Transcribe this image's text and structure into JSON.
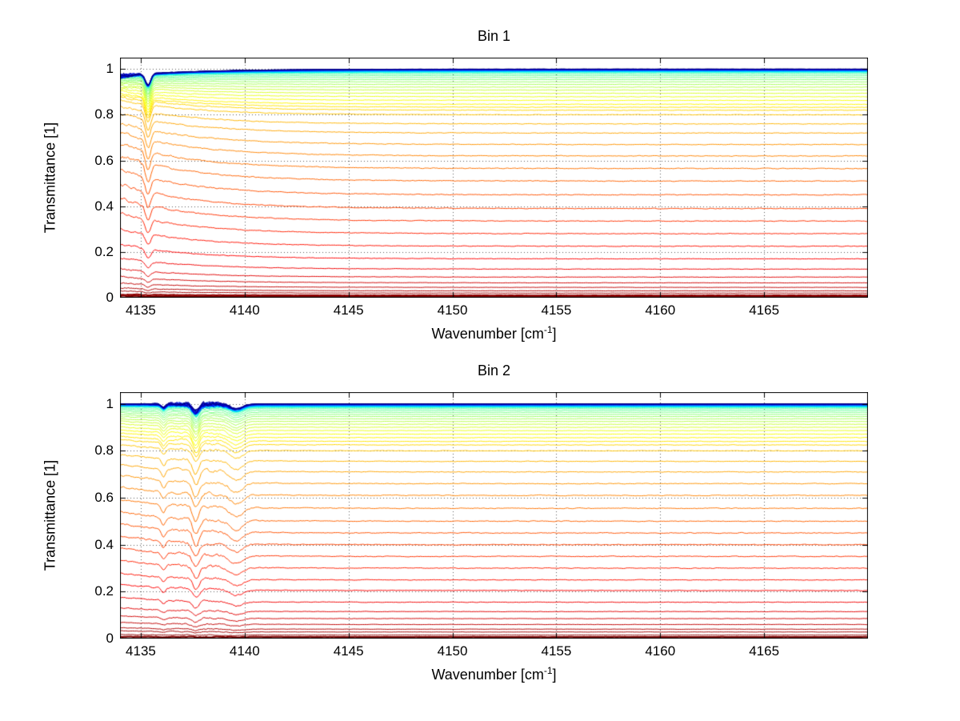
{
  "figure": {
    "background": "#ffffff",
    "text_color": "#000000",
    "grid_style": "dotted"
  },
  "chart_data": [
    {
      "type": "line",
      "title": "Bin 1",
      "xlabel": "Wavenumber [cm⁻¹]",
      "xlabel_base": "Wavenumber [cm",
      "xlabel_sup": "-1",
      "xlabel_close": "]",
      "ylabel": "Transmittance [1]",
      "xlim": [
        4134,
        4170
      ],
      "ylim": [
        0,
        1.05
      ],
      "xticks": [
        4135,
        4140,
        4145,
        4150,
        4155,
        4160,
        4165
      ],
      "xtick_labels": [
        "4135",
        "4140",
        "4145",
        "4150",
        "4155",
        "4160",
        "4165"
      ],
      "yticks": [
        0,
        0.2,
        0.4,
        0.6,
        0.8,
        1
      ],
      "ytick_labels": [
        "0",
        "0.2",
        "0.4",
        "0.6",
        "0.8",
        "1"
      ],
      "grid": "dotted",
      "legend": "none",
      "n_series": 64,
      "colormap": "jet by series index: highest-transmittance curves dark blue/cyan, then green, yellow, orange, down to dark red for lowest transmittance",
      "series_description": "Stack of near-flat transmittance spectra; each value below is the plateau level over 4140-4170 cm-1. Curves show elevated values and a sharp absorption dip with noise near 4134-4136 cm-1.",
      "feature_region": [
        4134,
        4136
      ],
      "series_levels": [
        1.0,
        0.9997,
        0.9994,
        0.9991,
        0.9988,
        0.9985,
        0.9982,
        0.9979,
        0.9976,
        0.9973,
        0.997,
        0.9967,
        0.9964,
        0.9961,
        0.9955,
        0.9948,
        0.9941,
        0.9934,
        0.9927,
        0.992,
        0.9913,
        0.9906,
        0.9899,
        0.9892,
        0.9885,
        0.9878,
        0.9871,
        0.9864,
        0.984,
        0.978,
        0.971,
        0.963,
        0.954,
        0.944,
        0.933,
        0.921,
        0.908,
        0.894,
        0.879,
        0.863,
        0.846,
        0.833,
        0.82,
        0.8,
        0.76,
        0.72,
        0.67,
        0.62,
        0.565,
        0.51,
        0.45,
        0.39,
        0.335,
        0.28,
        0.225,
        0.17,
        0.125,
        0.09,
        0.065,
        0.045,
        0.03,
        0.02,
        0.01,
        0.005
      ]
    },
    {
      "type": "line",
      "title": "Bin 2",
      "xlabel": "Wavenumber [cm⁻¹]",
      "xlabel_base": "Wavenumber [cm",
      "xlabel_sup": "-1",
      "xlabel_close": "]",
      "ylabel": "Transmittance [1]",
      "xlim": [
        4134,
        4170
      ],
      "ylim": [
        0,
        1.05
      ],
      "xticks": [
        4135,
        4140,
        4145,
        4150,
        4155,
        4160,
        4165
      ],
      "xtick_labels": [
        "4135",
        "4140",
        "4145",
        "4150",
        "4155",
        "4160",
        "4165"
      ],
      "yticks": [
        0,
        0.2,
        0.4,
        0.6,
        0.8,
        1
      ],
      "ytick_labels": [
        "0",
        "0.2",
        "0.4",
        "0.6",
        "0.8",
        "1"
      ],
      "grid": "dotted",
      "legend": "none",
      "n_series": 64,
      "colormap": "jet by series index: highest-transmittance curves dark blue/cyan, then green, yellow, orange, down to dark red for lowest transmittance",
      "series_description": "Stack of near-flat transmittance spectra; each value below is the plateau level over 4142-4170 cm-1. Curves show wiggles and absorption dips with noise near 4136-4140 cm-1.",
      "feature_region": [
        4136,
        4140
      ],
      "series_levels": [
        1.0,
        0.9997,
        0.9994,
        0.9991,
        0.9988,
        0.9985,
        0.9982,
        0.9979,
        0.9976,
        0.9973,
        0.997,
        0.9967,
        0.9964,
        0.9961,
        0.9955,
        0.9948,
        0.9941,
        0.9934,
        0.9927,
        0.992,
        0.9913,
        0.9906,
        0.9899,
        0.9892,
        0.9885,
        0.9878,
        0.9871,
        0.9864,
        0.984,
        0.979,
        0.972,
        0.964,
        0.955,
        0.946,
        0.936,
        0.925,
        0.913,
        0.9,
        0.886,
        0.871,
        0.856,
        0.84,
        0.825,
        0.8,
        0.755,
        0.71,
        0.66,
        0.61,
        0.555,
        0.5,
        0.45,
        0.4,
        0.35,
        0.3,
        0.25,
        0.205,
        0.155,
        0.115,
        0.085,
        0.06,
        0.04,
        0.028,
        0.015,
        0.007
      ]
    }
  ]
}
